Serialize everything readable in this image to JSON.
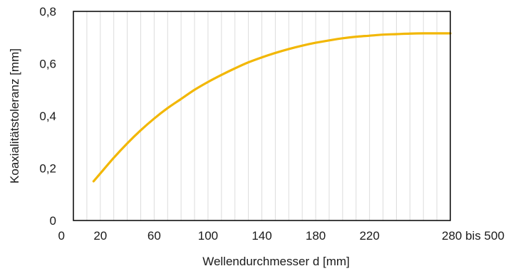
{
  "chart_data": {
    "type": "line",
    "title": "",
    "xlabel": "Wellendurchmesser d [mm]",
    "ylabel": "Koaxialitätstoleranz [mm]",
    "xlim": [
      0,
      280
    ],
    "ylim": [
      0,
      0.8
    ],
    "x_ticks": [
      {
        "value": 0,
        "label": "0"
      },
      {
        "value": 20,
        "label": "20"
      },
      {
        "value": 60,
        "label": "60"
      },
      {
        "value": 100,
        "label": "100"
      },
      {
        "value": 140,
        "label": "140"
      },
      {
        "value": 180,
        "label": "180"
      },
      {
        "value": 220,
        "label": "220"
      },
      {
        "value": 280,
        "label": "280 bis 500"
      }
    ],
    "y_ticks": [
      {
        "value": 0,
        "label": "0"
      },
      {
        "value": 0.2,
        "label": "0,2"
      },
      {
        "value": 0.4,
        "label": "0,4"
      },
      {
        "value": 0.6,
        "label": "0,6"
      },
      {
        "value": 0.8,
        "label": "0,8"
      }
    ],
    "x_minor_step": 10,
    "grid": true,
    "series": [
      {
        "color": "#f2b705",
        "x": [
          15,
          20,
          30,
          40,
          50,
          60,
          70,
          80,
          90,
          100,
          110,
          120,
          130,
          140,
          150,
          160,
          170,
          180,
          190,
          200,
          210,
          220,
          230,
          240,
          250,
          260,
          270,
          280
        ],
        "y": [
          0.15,
          0.18,
          0.24,
          0.295,
          0.345,
          0.39,
          0.43,
          0.465,
          0.5,
          0.53,
          0.557,
          0.582,
          0.605,
          0.624,
          0.641,
          0.656,
          0.669,
          0.68,
          0.689,
          0.697,
          0.703,
          0.707,
          0.711,
          0.713,
          0.715,
          0.716,
          0.716,
          0.716
        ]
      }
    ]
  }
}
